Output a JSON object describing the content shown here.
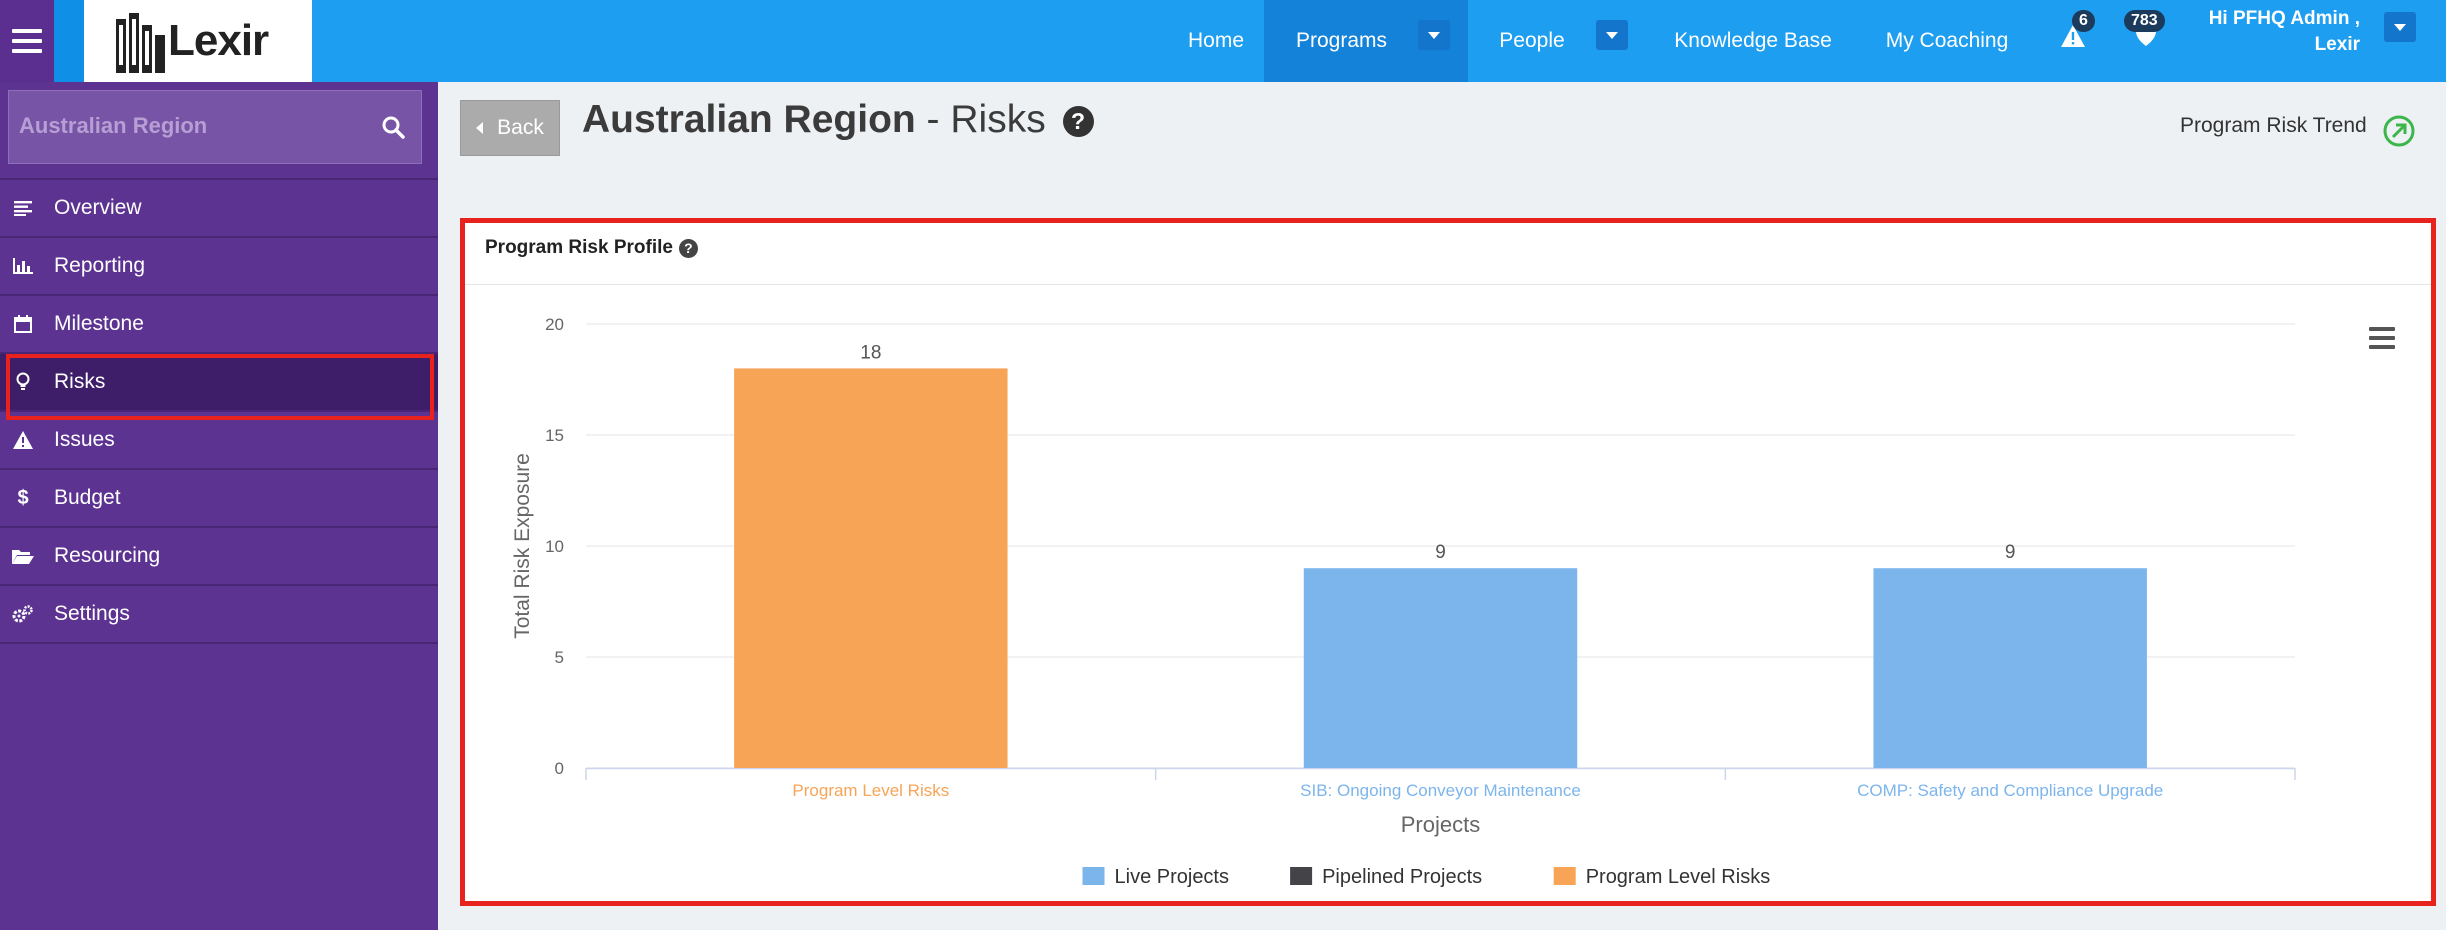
{
  "topbar": {
    "logo_text": "Lexir",
    "nav": {
      "home": "Home",
      "programs": "Programs",
      "people": "People",
      "knowledge_base": "Knowledge Base",
      "my_coaching": "My Coaching"
    },
    "alerts_count": "6",
    "notifications_count": "783",
    "user_greeting": "Hi PFHQ Admin ,",
    "user_org": "Lexir"
  },
  "sidebar": {
    "search_value": "Australian Region",
    "items": [
      {
        "label": "Overview",
        "icon": "list-icon"
      },
      {
        "label": "Reporting",
        "icon": "bar-chart-icon"
      },
      {
        "label": "Milestone",
        "icon": "calendar-icon"
      },
      {
        "label": "Risks",
        "icon": "lightbulb-icon",
        "active": true
      },
      {
        "label": "Issues",
        "icon": "warning-icon"
      },
      {
        "label": "Budget",
        "icon": "dollar-icon"
      },
      {
        "label": "Resourcing",
        "icon": "folder-open-icon"
      },
      {
        "label": "Settings",
        "icon": "gears-icon"
      }
    ]
  },
  "page": {
    "back_label": "Back",
    "title_bold": "Australian Region",
    "title_rest": " - Risks",
    "trend_link": "Program Risk Trend"
  },
  "card": {
    "title": "Program Risk Profile"
  },
  "chart_data": {
    "type": "bar",
    "categories": [
      "Program Level Risks",
      "SIB: Ongoing Conveyor Maintenance",
      "COMP: Safety and Compliance Upgrade"
    ],
    "values": [
      18,
      9,
      9
    ],
    "category_colors": [
      "#f7a456",
      "#7cb5ec",
      "#7cb5ec"
    ],
    "data_labels": [
      "18",
      "9",
      "9"
    ],
    "xlabel": "Projects",
    "ylabel": "Total Risk Exposure",
    "ylim": [
      0,
      20
    ],
    "yticks": [
      0,
      5,
      10,
      15,
      20
    ],
    "grid": true,
    "legend_position": "bottom-center",
    "legend": [
      {
        "name": "Live Projects",
        "color": "#7cb5ec"
      },
      {
        "name": "Pipelined Projects",
        "color": "#434348"
      },
      {
        "name": "Program Level Risks",
        "color": "#f7a456"
      }
    ]
  },
  "colors": {
    "topbar": "#1d9ef0",
    "sidebar": "#5c3391",
    "highlight": "#e8231d"
  }
}
